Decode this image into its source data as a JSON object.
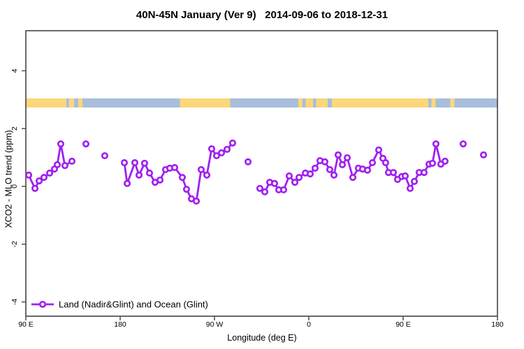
{
  "title": "40N-45N January (Ver 9)   2014-09-06 to 2018-12-31",
  "colors": {
    "series": "#a020f0",
    "land": "#fbd779",
    "ocean": "#a8bedb",
    "frame": "#454545",
    "text": "#000000",
    "marker_fill": "#ffffff"
  },
  "chart_data": {
    "type": "line",
    "title": "40N-45N January (Ver 9)   2014-09-06 to 2018-12-31",
    "xlabel": "Longitude (deg E)",
    "ylabel": "XCO2 - MLO trend (ppm)",
    "xlim": [
      90,
      540
    ],
    "ylim": [
      -4.5,
      5.4
    ],
    "grid": "off",
    "x_ticks": [
      {
        "x": 90,
        "label": "90 E"
      },
      {
        "x": 180,
        "label": "180"
      },
      {
        "x": 270,
        "label": "90 W"
      },
      {
        "x": 360,
        "label": "0"
      },
      {
        "x": 450,
        "label": "90 E"
      },
      {
        "x": 540,
        "label": "180"
      }
    ],
    "y_ticks": [
      {
        "y": 4,
        "label": "4"
      },
      {
        "y": 2,
        "label": "2"
      },
      {
        "y": 0,
        "label": "0"
      },
      {
        "y": -2,
        "label": "-2"
      },
      {
        "y": -4,
        "label": "-4"
      }
    ],
    "legend": {
      "label": "Land (Nadir&Glint) and Ocean (Glint)",
      "position": "bottom-left"
    },
    "map_strip": {
      "meaning": "land-ocean mask of the 40N-45N latitude band",
      "y_range": [
        2.72,
        3.04
      ],
      "segments": [
        {
          "from": 90,
          "to": 128.5,
          "type": "land"
        },
        {
          "from": 128.5,
          "to": 131,
          "type": "ocean"
        },
        {
          "from": 131,
          "to": 136,
          "type": "land"
        },
        {
          "from": 136,
          "to": 140,
          "type": "ocean"
        },
        {
          "from": 140,
          "to": 144,
          "type": "land"
        },
        {
          "from": 144,
          "to": 237,
          "type": "ocean"
        },
        {
          "from": 237,
          "to": 285,
          "type": "land"
        },
        {
          "from": 285,
          "to": 350,
          "type": "ocean"
        },
        {
          "from": 350,
          "to": 354,
          "type": "land"
        },
        {
          "from": 354,
          "to": 357,
          "type": "ocean"
        },
        {
          "from": 357,
          "to": 364,
          "type": "land"
        },
        {
          "from": 364,
          "to": 367,
          "type": "ocean"
        },
        {
          "from": 367,
          "to": 378,
          "type": "land"
        },
        {
          "from": 378,
          "to": 382,
          "type": "ocean"
        },
        {
          "from": 382,
          "to": 474,
          "type": "land"
        },
        {
          "from": 474,
          "to": 477,
          "type": "ocean"
        },
        {
          "from": 477,
          "to": 481,
          "type": "land"
        },
        {
          "from": 481,
          "to": 495,
          "type": "ocean"
        },
        {
          "from": 495,
          "to": 499,
          "type": "land"
        },
        {
          "from": 499,
          "to": 540,
          "type": "ocean"
        }
      ]
    },
    "series": [
      {
        "name": "Land (Nadir&Glint) and Ocean (Glint)",
        "segments": [
          {
            "connected": true,
            "points": [
              [
                92.7,
                0.39
              ],
              [
                98.7,
                -0.07
              ],
              [
                102.7,
                0.19
              ],
              [
                107.3,
                0.31
              ],
              [
                112.7,
                0.46
              ],
              [
                117.3,
                0.6
              ],
              [
                120.0,
                0.75
              ],
              [
                123.3,
                1.47
              ],
              [
                127.3,
                0.72
              ],
              [
                134.0,
                0.87
              ]
            ]
          },
          {
            "connected": false,
            "points": [
              [
                147.3,
                1.47
              ]
            ]
          },
          {
            "connected": false,
            "points": [
              [
                165.3,
                1.06
              ]
            ]
          },
          {
            "connected": true,
            "points": [
              [
                184.0,
                0.82
              ],
              [
                186.7,
                0.1
              ],
              [
                194.0,
                0.82
              ],
              [
                198.0,
                0.39
              ],
              [
                203.3,
                0.8
              ],
              [
                208.0,
                0.46
              ],
              [
                213.3,
                0.14
              ],
              [
                218.0,
                0.22
              ],
              [
                223.3,
                0.58
              ],
              [
                227.3,
                0.63
              ],
              [
                232.0,
                0.65
              ],
              [
                239.3,
                0.31
              ],
              [
                243.3,
                -0.1
              ],
              [
                248.0,
                -0.43
              ],
              [
                252.7,
                -0.51
              ],
              [
                257.3,
                0.58
              ],
              [
                262.7,
                0.39
              ],
              [
                267.3,
                1.3
              ],
              [
                272.0,
                1.06
              ],
              [
                276.7,
                1.16
              ],
              [
                282.0,
                1.28
              ],
              [
                287.3,
                1.5
              ]
            ]
          },
          {
            "connected": false,
            "points": [
              [
                302.0,
                0.85
              ]
            ]
          },
          {
            "connected": true,
            "points": [
              [
                313.3,
                -0.07
              ],
              [
                318.0,
                -0.19
              ],
              [
                322.7,
                0.14
              ],
              [
                327.3,
                0.1
              ],
              [
                331.3,
                -0.12
              ],
              [
                336.0,
                -0.12
              ],
              [
                341.3,
                0.36
              ],
              [
                346.7,
                0.14
              ],
              [
                350.7,
                0.31
              ],
              [
                356.7,
                0.46
              ],
              [
                361.3,
                0.43
              ],
              [
                366.0,
                0.63
              ],
              [
                370.7,
                0.89
              ],
              [
                375.3,
                0.85
              ],
              [
                380.0,
                0.58
              ],
              [
                384.0,
                0.39
              ],
              [
                388.0,
                1.09
              ],
              [
                392.0,
                0.75
              ],
              [
                396.7,
                0.99
              ],
              [
                402.0,
                0.31
              ],
              [
                407.3,
                0.63
              ],
              [
                411.3,
                0.6
              ],
              [
                416.0,
                0.56
              ],
              [
                420.7,
                0.82
              ],
              [
                426.7,
                1.26
              ],
              [
                430.7,
                0.97
              ],
              [
                433.3,
                0.82
              ],
              [
                436.0,
                0.48
              ],
              [
                440.7,
                0.48
              ],
              [
                444.7,
                0.24
              ],
              [
                448.7,
                0.34
              ],
              [
                452.0,
                0.36
              ],
              [
                456.7,
                -0.07
              ],
              [
                460.7,
                0.17
              ],
              [
                465.3,
                0.48
              ],
              [
                470.0,
                0.48
              ],
              [
                474.7,
                0.77
              ],
              [
                478.0,
                0.8
              ],
              [
                481.3,
                1.47
              ],
              [
                486.0,
                0.77
              ],
              [
                490.0,
                0.87
              ]
            ]
          },
          {
            "connected": false,
            "points": [
              [
                507.3,
                1.47
              ]
            ]
          },
          {
            "connected": false,
            "points": [
              [
                526.7,
                1.09
              ]
            ]
          }
        ]
      }
    ]
  }
}
